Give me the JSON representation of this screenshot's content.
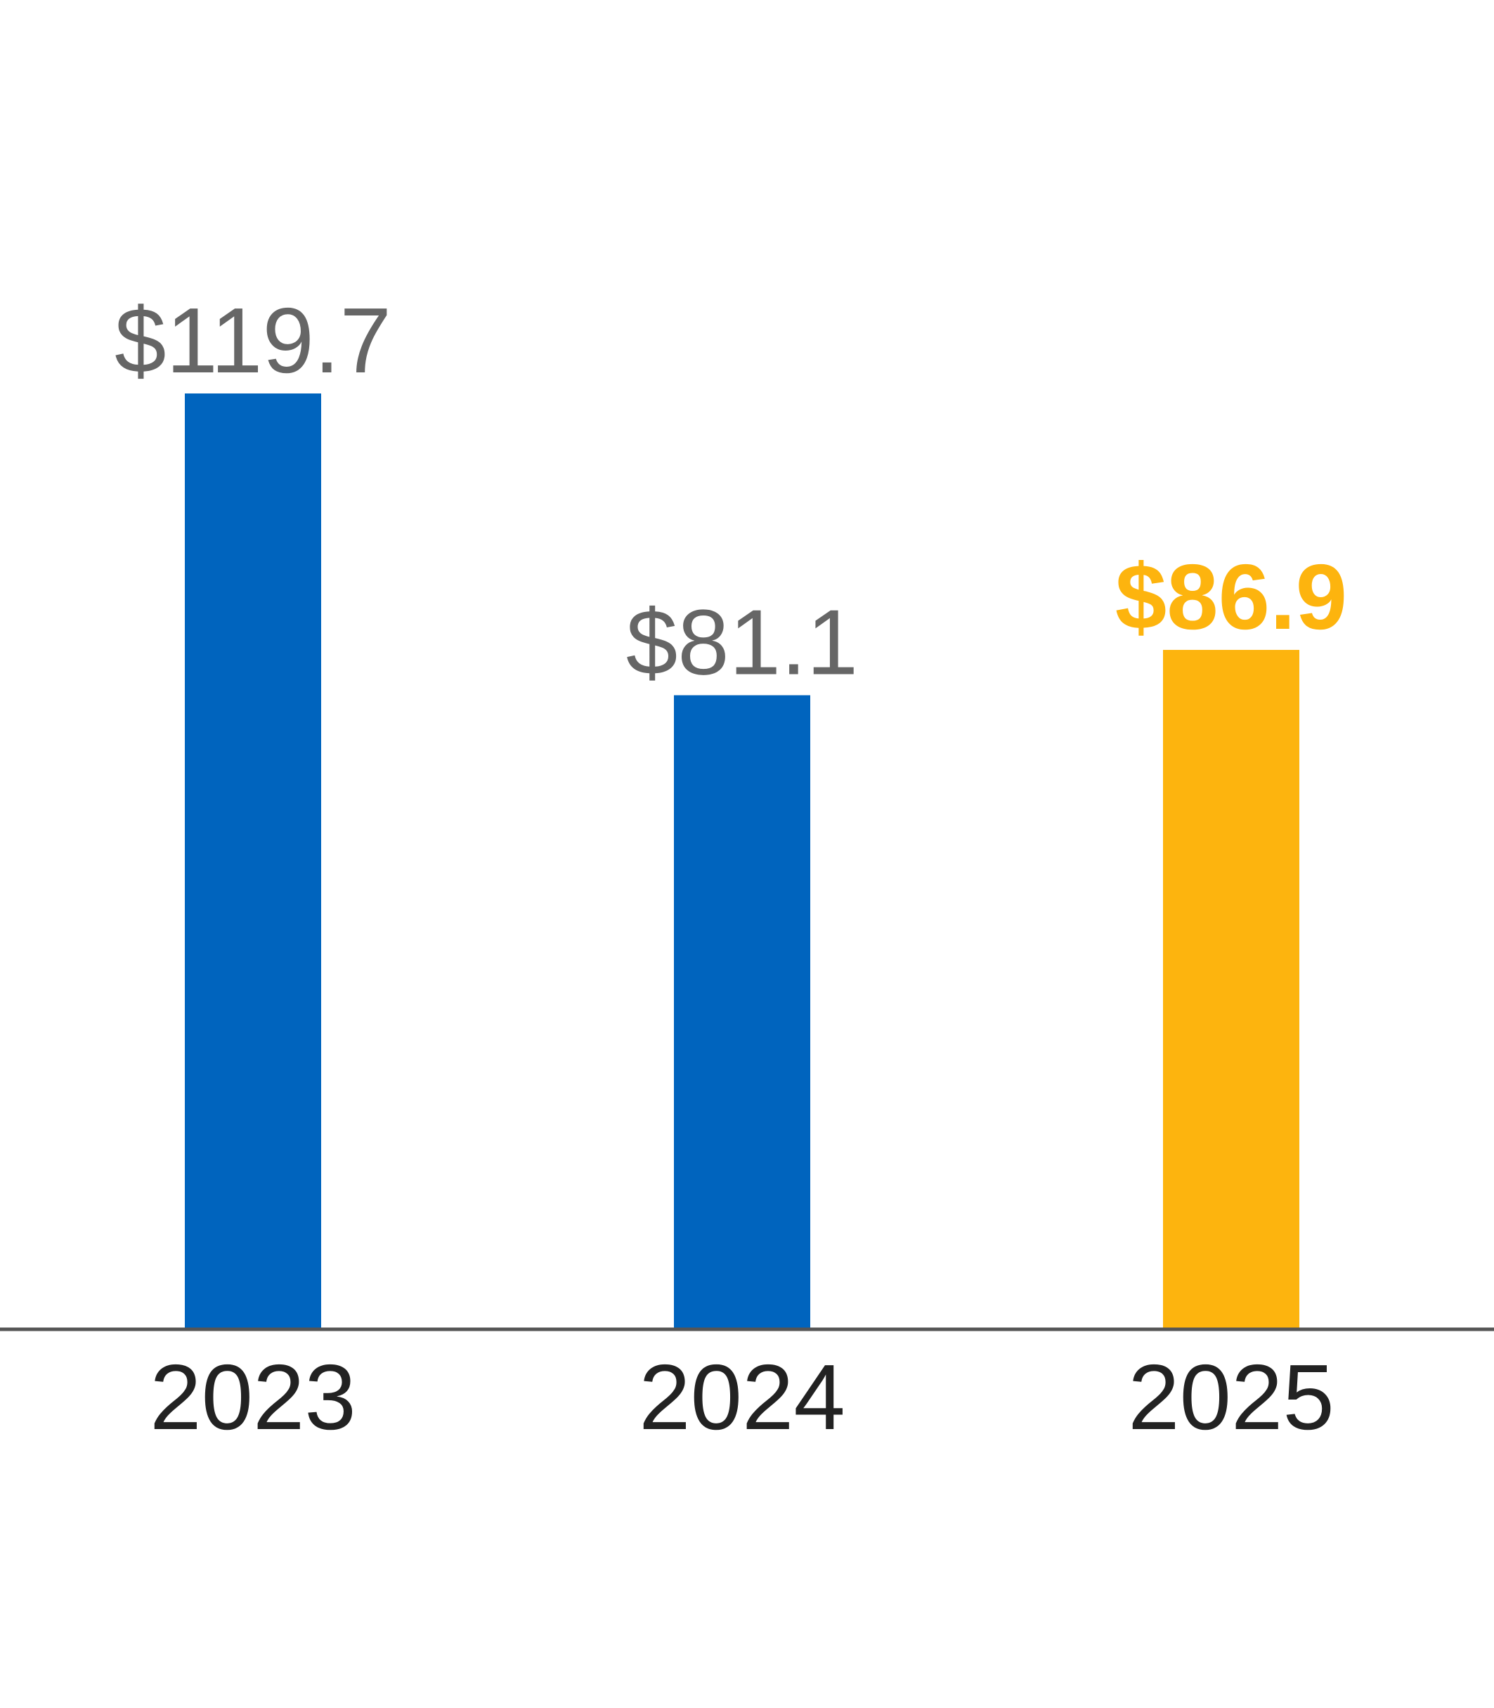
{
  "chart_data": {
    "type": "bar",
    "categories": [
      "2023",
      "2024",
      "2025"
    ],
    "values": [
      119.7,
      81.1,
      86.9
    ],
    "value_labels": [
      "$119.7",
      "$81.1",
      "$86.9"
    ],
    "highlight_index": 2,
    "title": "",
    "xlabel": "",
    "ylabel": "",
    "ylim": [
      0,
      160
    ],
    "grid": false,
    "legend": "none"
  },
  "colors": {
    "bar_default": "#0064BE",
    "bar_highlight": "#FDB40E",
    "label_default": "#666666",
    "label_highlight": "#FDB40E",
    "axis": "#555555",
    "tick_text": "#222222"
  }
}
